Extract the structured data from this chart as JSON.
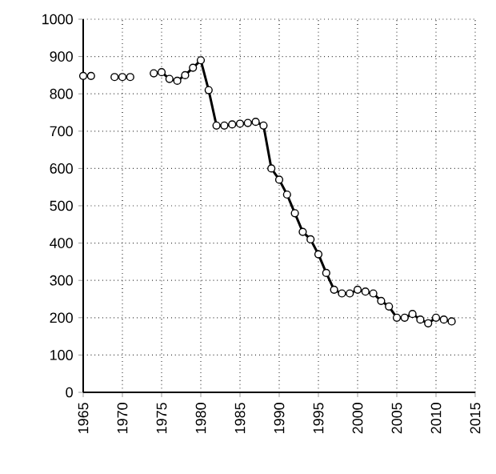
{
  "chart_data": {
    "type": "line",
    "series": [
      {
        "type": "scatter",
        "color": "#000000",
        "x": [
          1965,
          1966,
          1969,
          1970,
          1971
        ],
        "values": [
          848,
          848,
          845,
          845,
          845
        ]
      },
      {
        "color": "#000000",
        "x": [
          1974,
          1975,
          1976,
          1977,
          1978,
          1979,
          1980,
          1981,
          1982,
          1983,
          1984,
          1985,
          1986,
          1987,
          1988,
          1989,
          1990,
          1991,
          1992,
          1993,
          1994,
          1995,
          1996,
          1997,
          1998,
          1999,
          2000,
          2001,
          2002,
          2003,
          2004,
          2005,
          2006,
          2007,
          2008,
          2009,
          2010,
          2011,
          2012
        ],
        "values": [
          855,
          858,
          840,
          835,
          850,
          870,
          890,
          810,
          715,
          715,
          718,
          720,
          722,
          725,
          715,
          600,
          570,
          530,
          480,
          430,
          410,
          370,
          320,
          275,
          265,
          265,
          275,
          270,
          265,
          245,
          230,
          200,
          200,
          210,
          195,
          185,
          200,
          195,
          190
        ]
      }
    ],
    "xlim": [
      1965,
      2015
    ],
    "xticks": [
      1965,
      1970,
      1975,
      1980,
      1985,
      1990,
      1995,
      2000,
      2005,
      2010,
      2015
    ],
    "ylim": [
      0,
      1000
    ],
    "yticks": [
      0,
      100,
      200,
      300,
      400,
      500,
      600,
      700,
      800,
      900,
      1000
    ],
    "grid": true,
    "marker": "circle",
    "line_style": "solid"
  }
}
